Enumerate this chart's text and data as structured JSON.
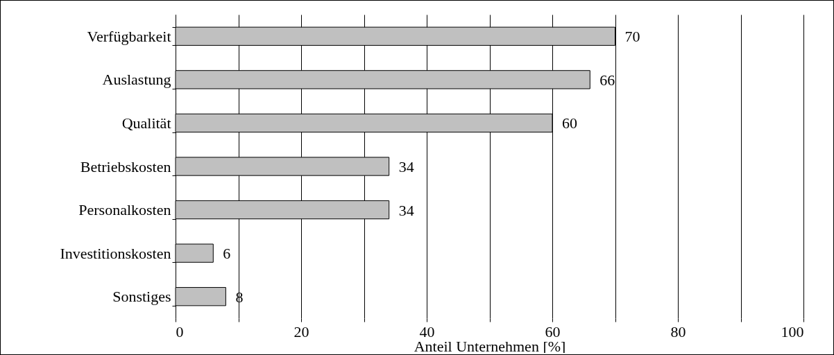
{
  "chart_data": {
    "type": "bar",
    "orientation": "horizontal",
    "xlabel": "Anteil Unternehmen [%]",
    "categories": [
      "Verfügbarkeit",
      "Auslastung",
      "Qualität",
      "Betriebskosten",
      "Personalkosten",
      "Investitionskosten",
      "Sonstiges"
    ],
    "values": [
      70,
      66,
      60,
      34,
      34,
      6,
      8
    ],
    "color": "#c0c0c0",
    "xlim": [
      0,
      100
    ],
    "xticks": [
      0,
      {
        "value": 10,
        "label": null
      },
      20,
      {
        "value": 30,
        "label": null
      },
      40,
      {
        "value": 50,
        "label": null
      },
      60,
      {
        "value": 70,
        "label": null
      },
      80,
      {
        "value": 90,
        "label": null
      },
      100
    ],
    "grid": "x",
    "data_labels": true
  }
}
